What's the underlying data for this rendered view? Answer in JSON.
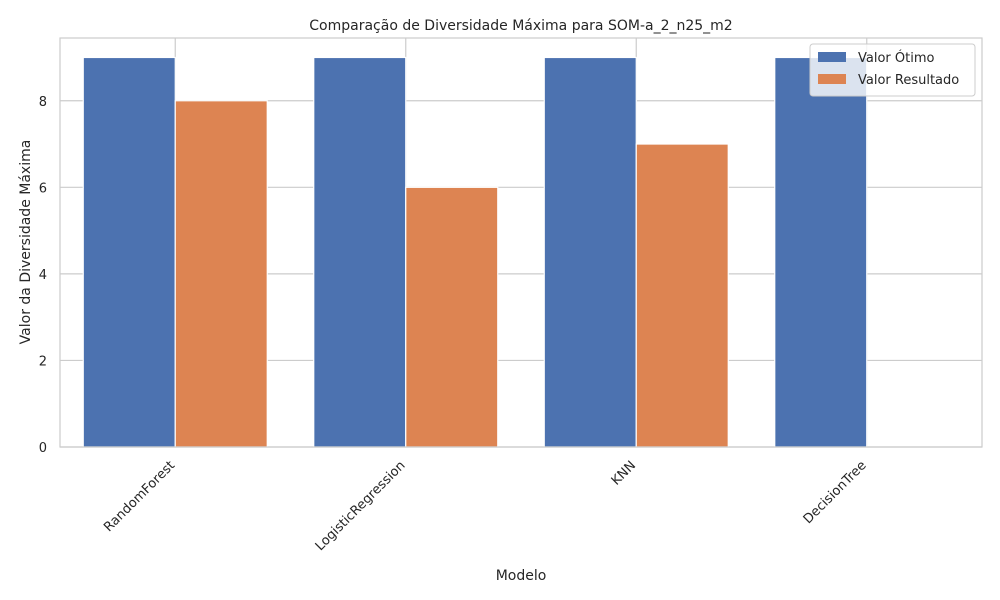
{
  "chart_data": {
    "type": "bar",
    "title": "Comparação de Diversidade Máxima para SOM-a_2_n25_m2",
    "xlabel": "Modelo",
    "ylabel": "Valor da Diversidade Máxima",
    "categories": [
      "RandomForest",
      "LogisticRegression",
      "KNN",
      "DecisionTree"
    ],
    "series": [
      {
        "name": "Valor Ótimo",
        "values": [
          9,
          9,
          9,
          9
        ],
        "color": "#4c72b0"
      },
      {
        "name": "Valor Resultado",
        "values": [
          8,
          6,
          7,
          0
        ],
        "color": "#dd8452"
      }
    ],
    "ylim": [
      0,
      9.45
    ],
    "yticks": [
      0,
      2,
      4,
      6,
      8
    ],
    "grid": true,
    "legend": "top-right"
  }
}
